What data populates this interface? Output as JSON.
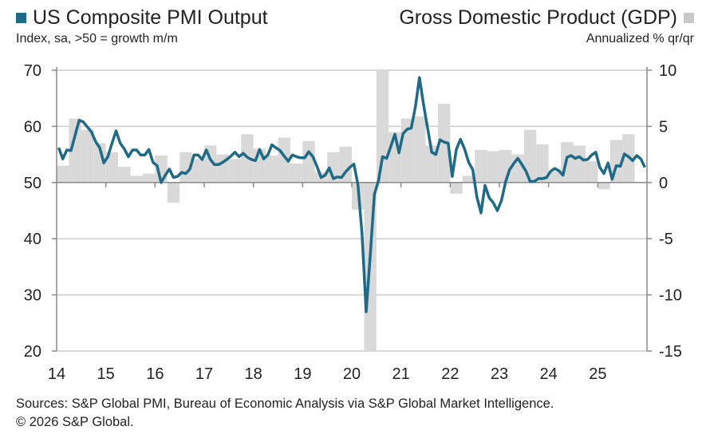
{
  "colors": {
    "pmi_line": "#1F6A86",
    "gdp_bar": "#D9D9D9",
    "grid": "#CCCCCC",
    "axis": "#888888"
  },
  "header": {
    "left_title": "US Composite PMI Output",
    "left_subtitle": "Index, sa, >50 = growth m/m",
    "right_title": "Gross Domestic Product (GDP)",
    "right_subtitle": "Annualized % qr/qr"
  },
  "footer": {
    "sources": "Sources: S&P Global PMI, Bureau of Economic Analysis via S&P Global Market Intelligence.",
    "copyright": "© 2026 S&P Global."
  },
  "chart_data": {
    "type": "line+bar",
    "title": "US Composite PMI Output vs Gross Domestic Product (GDP)",
    "x_tick_labels": [
      "14",
      "15",
      "16",
      "17",
      "18",
      "19",
      "20",
      "21",
      "22",
      "23",
      "24",
      "25"
    ],
    "x_range": [
      2014,
      2026
    ],
    "left_axis": {
      "label": "Index, sa, >50 = growth m/m",
      "ylim": [
        20,
        70
      ],
      "ticks": [
        "70",
        "60",
        "50",
        "40",
        "30",
        "20"
      ]
    },
    "right_axis": {
      "label": "Annualized % qr/qr",
      "ylim": [
        -15,
        10
      ],
      "ticks": [
        "10",
        "5",
        "0",
        "-5",
        "-10",
        "-15"
      ]
    },
    "grid": true,
    "series": [
      {
        "name": "US Composite PMI Output",
        "type": "line",
        "axis": "left",
        "frequency": "monthly",
        "start": "2014-01",
        "values": [
          56.2,
          54.2,
          55.8,
          55.7,
          58.4,
          61.1,
          60.8,
          59.9,
          59.0,
          57.3,
          56.2,
          53.5,
          54.6,
          57.0,
          59.2,
          57.0,
          56.0,
          54.6,
          55.8,
          55.8,
          54.9,
          54.9,
          55.9,
          53.6,
          53.0,
          50.0,
          51.3,
          52.4,
          50.9,
          51.1,
          51.8,
          51.6,
          52.4,
          54.9,
          54.9,
          54.1,
          55.8,
          54.1,
          53.2,
          53.2,
          53.6,
          54.1,
          54.7,
          55.4,
          54.6,
          55.2,
          54.5,
          54.1,
          53.9,
          55.9,
          54.2,
          54.9,
          56.7,
          56.2,
          55.7,
          54.7,
          53.8,
          54.9,
          54.6,
          54.4,
          54.4,
          55.5,
          54.6,
          52.9,
          50.9,
          51.3,
          52.6,
          50.7,
          51.0,
          50.9,
          51.9,
          52.7,
          53.3,
          49.6,
          40.9,
          27.0,
          37.0,
          47.9,
          50.3,
          54.6,
          54.3,
          56.4,
          58.6,
          55.3,
          58.7,
          59.5,
          59.7,
          63.5,
          68.7,
          63.9,
          59.6,
          55.4,
          55.0,
          57.6,
          57.2,
          57.0,
          51.1,
          55.9,
          57.7,
          56.0,
          53.6,
          52.3,
          47.5,
          44.6,
          49.5,
          47.3,
          46.4,
          45.0,
          46.8,
          50.1,
          52.3,
          53.4,
          54.3,
          53.2,
          52.0,
          50.2,
          50.2,
          50.7,
          50.7,
          50.9,
          52.0,
          52.5,
          52.1,
          51.3,
          54.5,
          54.8,
          54.3,
          54.6,
          54.0,
          54.1,
          54.9,
          55.4,
          52.7,
          51.6,
          53.5,
          50.6,
          53.0,
          52.9,
          55.1,
          54.6,
          53.9,
          54.8,
          54.2,
          52.7
        ]
      },
      {
        "name": "Gross Domestic Product (GDP)",
        "type": "bar",
        "axis": "right",
        "frequency": "quarterly",
        "start": "2014-Q1",
        "values": [
          1.5,
          5.7,
          4.7,
          3.5,
          2.7,
          1.4,
          0.6,
          0.8,
          2.4,
          -1.8,
          2.7,
          2.1,
          3.3,
          2.5,
          2.1,
          4.3,
          3.0,
          2.4,
          4.0,
          1.7,
          3.7,
          0.9,
          2.7,
          3.2,
          -2.4,
          -15,
          10,
          4.5,
          5.7,
          5.9,
          3.3,
          7.0,
          -1.0,
          0.6,
          2.9,
          2.8,
          2.9,
          2.5,
          4.7,
          3.4,
          1.0,
          3.6,
          3.3,
          1.9,
          -0.6,
          3.8,
          4.3
        ]
      }
    ]
  }
}
